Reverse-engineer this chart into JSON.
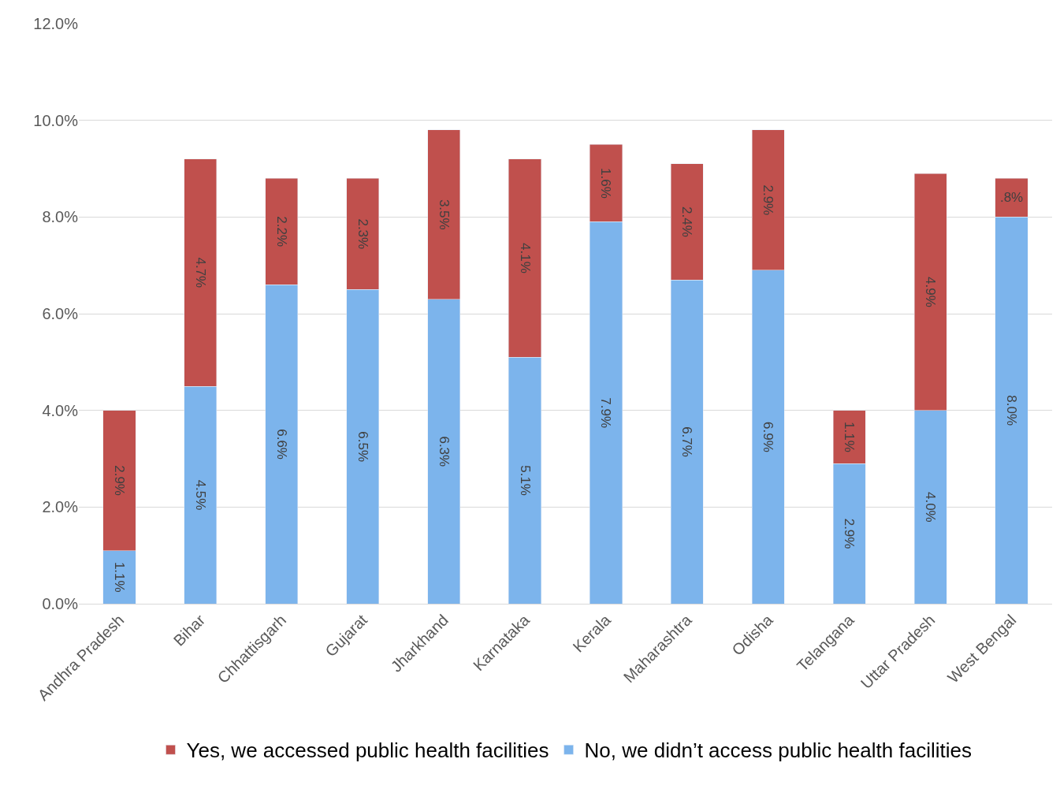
{
  "chart_data": {
    "type": "bar",
    "stacked": true,
    "categories": [
      "Andhra Pradesh",
      "Bihar",
      "Chhattisgarh",
      "Gujarat",
      "Jharkhand",
      "Karnataka",
      "Kerala",
      "Maharashtra",
      "Odisha",
      "Telangana",
      "Uttar Pradesh",
      "West Bengal"
    ],
    "series": [
      {
        "name": "No, we didn’t access public health facilities",
        "color": "#7cb4ec",
        "values": [
          1.1,
          4.5,
          6.6,
          6.5,
          6.3,
          5.1,
          7.9,
          6.7,
          6.9,
          2.9,
          4.0,
          8.0
        ],
        "value_labels": [
          "1.1%",
          "4.5%",
          "6.6%",
          "6.5%",
          "6.3%",
          "5.1%",
          "7.9%",
          "6.7%",
          "6.9%",
          "2.9%",
          "4.0%",
          "8.0%"
        ]
      },
      {
        "name": "Yes, we accessed public health facilities",
        "color": "#c0504d",
        "values": [
          2.9,
          4.7,
          2.2,
          2.3,
          3.5,
          4.1,
          1.6,
          2.4,
          2.9,
          1.1,
          4.9,
          0.8
        ],
        "value_labels": [
          "2.9%",
          "4.7%",
          "2.2%",
          "2.3%",
          "3.5%",
          "4.1%",
          "1.6%",
          "2.4%",
          "2.9%",
          "1.1%",
          "4.9%",
          ".8%"
        ]
      }
    ],
    "ylim": [
      0,
      12
    ],
    "yticks": [
      {
        "value": 0,
        "label": "0.0%"
      },
      {
        "value": 2,
        "label": "2.0%"
      },
      {
        "value": 4,
        "label": "4.0%"
      },
      {
        "value": 6,
        "label": "6.0%"
      },
      {
        "value": 8,
        "label": "8.0%"
      },
      {
        "value": 10,
        "label": "10.0%"
      },
      {
        "value": 12,
        "label": "12.0%"
      }
    ],
    "grid": "y",
    "legend": "bottom"
  }
}
